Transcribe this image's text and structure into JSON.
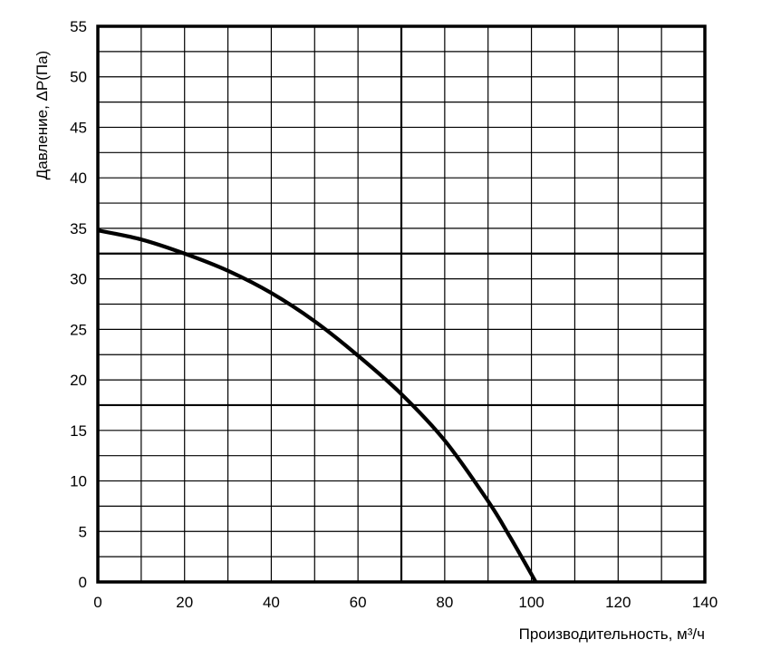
{
  "chart_data": {
    "type": "line",
    "xlabel": "Производительность, м³/ч",
    "ylabel": "Давление, ΔP(Па)",
    "xlim": [
      0,
      140
    ],
    "ylim": [
      0,
      55
    ],
    "xticks": [
      0,
      20,
      40,
      60,
      80,
      100,
      120,
      140
    ],
    "yticks": [
      0,
      5,
      10,
      15,
      20,
      25,
      30,
      35,
      40,
      45,
      50,
      55
    ],
    "grid": true,
    "series": [
      {
        "x": [
          0,
          10,
          20,
          30,
          40,
          50,
          60,
          70,
          80,
          90,
          95,
          101
        ],
        "y": [
          34.8,
          33.9,
          32.5,
          30.8,
          28.6,
          25.8,
          22.4,
          18.6,
          14.0,
          8.0,
          4.5,
          0
        ]
      }
    ]
  }
}
